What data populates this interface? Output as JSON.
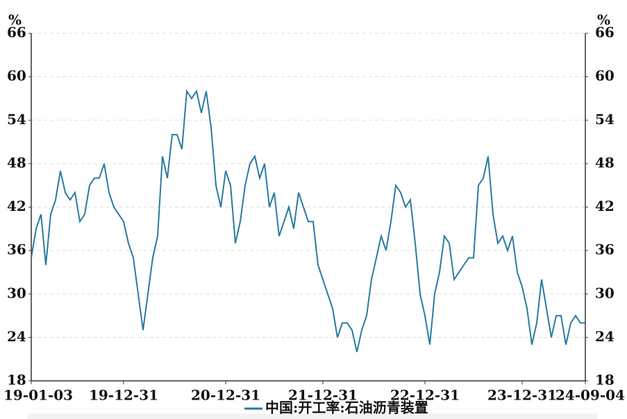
{
  "chart_data": {
    "type": "line",
    "y_label": "%",
    "y2_label": "%",
    "categories": [
      "19-01-03",
      null,
      null,
      null,
      null,
      null,
      null,
      null,
      null,
      null,
      null,
      null,
      null,
      null,
      null,
      null,
      null,
      null,
      null,
      "19-12-31",
      null,
      null,
      null,
      null,
      null,
      null,
      null,
      null,
      null,
      null,
      null,
      null,
      null,
      null,
      null,
      null,
      null,
      null,
      null,
      null,
      "20-12-31",
      null,
      null,
      null,
      null,
      null,
      null,
      null,
      null,
      null,
      null,
      null,
      null,
      null,
      null,
      null,
      null,
      null,
      null,
      null,
      "21-12-31",
      null,
      null,
      null,
      null,
      null,
      null,
      null,
      null,
      null,
      null,
      null,
      null,
      null,
      null,
      null,
      null,
      null,
      null,
      null,
      null,
      "22-12-31",
      null,
      null,
      null,
      null,
      null,
      null,
      null,
      null,
      null,
      null,
      null,
      null,
      null,
      null,
      null,
      null,
      null,
      null,
      null,
      "23-12-31",
      null,
      null,
      null,
      null,
      null,
      null,
      null,
      null,
      null,
      null,
      null,
      null,
      "24-09-04"
    ],
    "series": [
      {
        "name": "中国:开工率:石油沥青装置",
        "color": "#2a7aa0",
        "values": [
          35,
          39,
          41,
          34,
          41,
          43,
          47,
          44,
          43,
          44,
          40,
          41,
          45,
          46,
          46,
          48,
          44,
          42,
          41,
          40,
          37,
          35,
          30,
          25,
          30,
          35,
          38,
          49,
          46,
          52,
          52,
          50,
          58,
          57,
          58,
          55,
          58,
          53,
          45,
          42,
          47,
          45,
          37,
          40,
          45,
          48,
          49,
          46,
          48,
          42,
          44,
          38,
          40,
          42,
          39,
          44,
          42,
          40,
          40,
          34,
          32,
          30,
          28,
          24,
          26,
          26,
          25,
          22,
          25,
          27,
          32,
          35,
          38,
          36,
          40,
          45,
          44,
          42,
          43,
          37,
          30,
          27,
          23,
          30,
          33,
          38,
          37,
          32,
          33,
          34,
          35,
          35,
          45,
          46,
          49,
          41,
          37,
          38,
          36,
          38,
          33,
          31,
          28,
          23,
          26,
          32,
          28,
          24,
          27,
          27,
          23,
          26,
          27,
          26,
          26
        ]
      }
    ],
    "ylim": [
      18,
      66
    ],
    "yticks": [
      18,
      24,
      30,
      36,
      42,
      48,
      54,
      60,
      66
    ],
    "y2lim": [
      18,
      66
    ],
    "y2ticks": [
      18,
      24,
      30,
      36,
      42,
      48,
      54,
      60,
      66
    ],
    "grid": true
  }
}
